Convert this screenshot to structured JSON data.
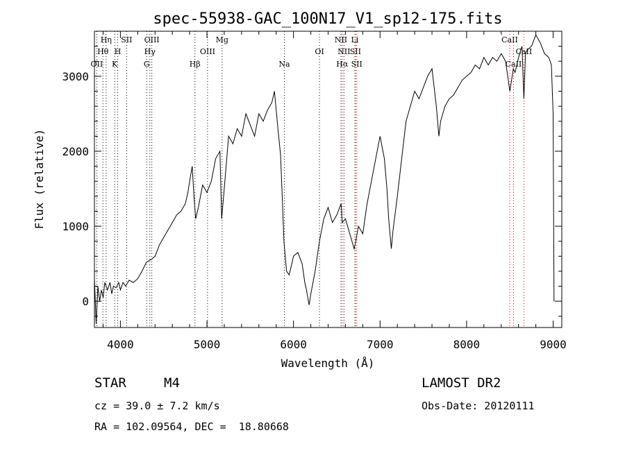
{
  "chart_data": {
    "type": "line",
    "title": "spec-55938-GAC_100N17_V1_sp12-175.fits",
    "xlabel": "Wavelength (Å)",
    "ylabel": "Flux (relative)",
    "xlim": [
      3700,
      9100
    ],
    "ylim": [
      -350,
      3600
    ],
    "x_ticks": [
      4000,
      5000,
      6000,
      7000,
      8000,
      9000
    ],
    "y_ticks": [
      0,
      1000,
      2000,
      3000
    ],
    "grid": false,
    "series": [
      {
        "x": [
          3700,
          3720,
          3740,
          3760,
          3780,
          3800,
          3820,
          3850,
          3880,
          3900,
          3920,
          3950,
          3980,
          4000,
          4030,
          4060,
          4100,
          4150,
          4200,
          4250,
          4300,
          4330,
          4360,
          4400,
          4450,
          4500,
          4550,
          4600,
          4650,
          4700,
          4750,
          4780,
          4800,
          4830,
          4850,
          4870,
          4900,
          4950,
          5000,
          5050,
          5100,
          5150,
          5170,
          5200,
          5250,
          5300,
          5350,
          5400,
          5450,
          5500,
          5550,
          5600,
          5650,
          5700,
          5750,
          5780,
          5800,
          5820,
          5850,
          5870,
          5890,
          5900,
          5920,
          5950,
          5980,
          6000,
          6050,
          6100,
          6130,
          6150,
          6180,
          6200,
          6250,
          6300,
          6350,
          6400,
          6450,
          6500,
          6550,
          6563,
          6600,
          6650,
          6700,
          6720,
          6750,
          6800,
          6850,
          6900,
          6950,
          7000,
          7050,
          7080,
          7100,
          7130,
          7150,
          7200,
          7250,
          7300,
          7350,
          7400,
          7450,
          7500,
          7550,
          7600,
          7650,
          7680,
          7700,
          7750,
          7800,
          7850,
          7900,
          7950,
          8000,
          8050,
          8100,
          8150,
          8200,
          8250,
          8300,
          8350,
          8400,
          8450,
          8500,
          8540,
          8560,
          8600,
          8640,
          8662,
          8680,
          8700,
          8750,
          8800,
          8850,
          8900,
          8950,
          8980,
          9000,
          9010
        ],
        "y": [
          300,
          -300,
          200,
          0,
          150,
          50,
          250,
          150,
          250,
          100,
          200,
          180,
          250,
          150,
          250,
          200,
          280,
          250,
          300,
          400,
          520,
          540,
          560,
          600,
          750,
          850,
          950,
          1050,
          1150,
          1200,
          1300,
          1450,
          1600,
          1800,
          1400,
          1100,
          1250,
          1550,
          1450,
          1600,
          1900,
          2000,
          1100,
          1500,
          2200,
          2100,
          2300,
          2200,
          2500,
          2350,
          2200,
          2500,
          2400,
          2550,
          2650,
          2800,
          2550,
          2300,
          1950,
          1400,
          800,
          650,
          400,
          350,
          500,
          600,
          650,
          500,
          250,
          150,
          -50,
          100,
          400,
          800,
          1100,
          1250,
          1050,
          1150,
          1300,
          1050,
          1100,
          900,
          700,
          800,
          1000,
          900,
          1300,
          1600,
          1900,
          2200,
          1900,
          1500,
          1100,
          700,
          950,
          1400,
          1900,
          2400,
          2600,
          2800,
          2700,
          2850,
          3000,
          3100,
          2600,
          2200,
          2400,
          2600,
          2700,
          2750,
          2850,
          2950,
          3000,
          3050,
          3150,
          3100,
          3250,
          3150,
          3250,
          3200,
          3300,
          3200,
          2800,
          3100,
          3050,
          3250,
          3400,
          2700,
          3300,
          3350,
          3400,
          3550,
          3450,
          3300,
          3250,
          3150,
          2500,
          0
        ]
      }
    ],
    "line_markers": [
      {
        "name": "OII",
        "wl": 3727,
        "row": 3,
        "color": "#000000"
      },
      {
        "name": "Hθ",
        "wl": 3798,
        "row": 2,
        "color": "#000000"
      },
      {
        "name": "Hη",
        "wl": 3835,
        "row": 1,
        "color": "#000000"
      },
      {
        "name": "K",
        "wl": 3934,
        "row": 3,
        "color": "#000000"
      },
      {
        "name": "H",
        "wl": 3969,
        "row": 2,
        "color": "#000000"
      },
      {
        "name": "SII",
        "wl": 4072,
        "row": 1,
        "color": "#000000"
      },
      {
        "name": "G",
        "wl": 4304,
        "row": 3,
        "color": "#000000"
      },
      {
        "name": "Hγ",
        "wl": 4340,
        "row": 2,
        "color": "#000000"
      },
      {
        "name": "OIII",
        "wl": 4363,
        "row": 1,
        "color": "#000000"
      },
      {
        "name": "Hβ",
        "wl": 4861,
        "row": 3,
        "color": "#000000"
      },
      {
        "name": "OIII",
        "wl": 5007,
        "row": 2,
        "color": "#000000"
      },
      {
        "name": "Mg",
        "wl": 5175,
        "row": 1,
        "color": "#000000"
      },
      {
        "name": "Na",
        "wl": 5894,
        "row": 3,
        "color": "#000000"
      },
      {
        "name": "OI",
        "wl": 6300,
        "row": 2,
        "color": "#000000"
      },
      {
        "name": "NII",
        "wl": 6548,
        "row": 1,
        "color": "#000000"
      },
      {
        "name": "Hα",
        "wl": 6563,
        "row": 3,
        "color": "#cc0000"
      },
      {
        "name": "NII",
        "wl": 6583,
        "row": 2,
        "color": "#000000"
      },
      {
        "name": "SII",
        "wl": 6716,
        "row": 2,
        "color": "#000000"
      },
      {
        "name": "Li",
        "wl": 6708,
        "row": 1,
        "color": "#cc0000"
      },
      {
        "name": "SII",
        "wl": 6731,
        "row": 3,
        "color": "#cc0000"
      },
      {
        "name": "CaII",
        "wl": 8498,
        "row": 1,
        "color": "#cc0000"
      },
      {
        "name": "CaII",
        "wl": 8542,
        "row": 3,
        "color": "#cc0000"
      },
      {
        "name": "CaII",
        "wl": 8662,
        "row": 2,
        "color": "#cc0000"
      }
    ]
  },
  "info": {
    "object_class": "STAR",
    "subclass": "M4",
    "survey": "LAMOST DR2",
    "cz": "cz = 39.0 ± 7.2 km/s",
    "obs_date": "Obs-Date: 20120111",
    "radec": "RA = 102.09564, DEC =  18.80668"
  },
  "colors": {
    "spectrum": "#000000",
    "marker_black": "#000000",
    "marker_red": "#cc0000"
  }
}
